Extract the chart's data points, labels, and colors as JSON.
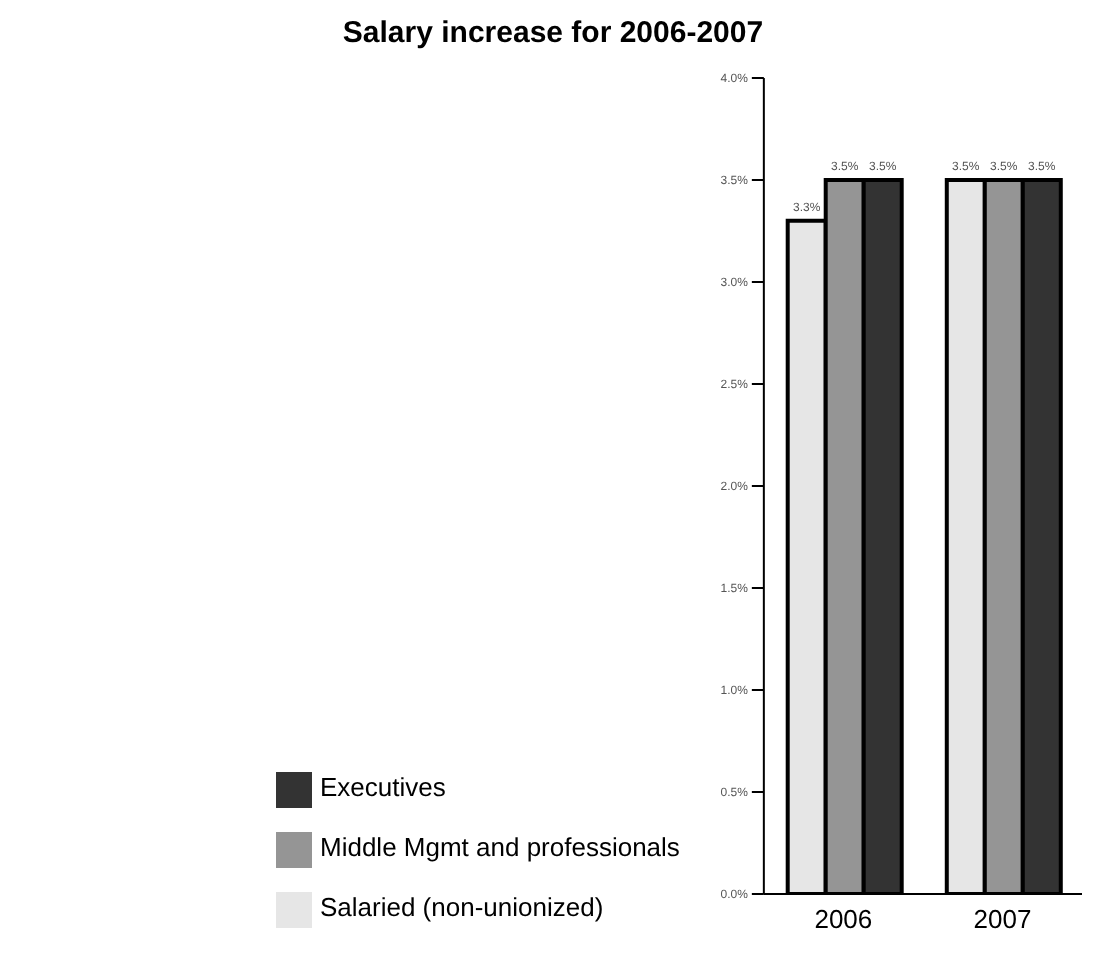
{
  "chart_data": {
    "type": "bar",
    "title": "Salary increase for 2006-2007",
    "categories": [
      "2006",
      "2007"
    ],
    "series": [
      {
        "name": "Salaried (non-unionized)",
        "color": "#e6e6e6",
        "values": [
          3.3,
          3.5
        ],
        "value_labels": [
          "3.3%",
          "3.5%"
        ]
      },
      {
        "name": "Middle Mgmt and professionals",
        "color": "#959595",
        "values": [
          3.5,
          3.5
        ],
        "value_labels": [
          "3.5%",
          "3.5%"
        ]
      },
      {
        "name": "Executives",
        "color": "#333333",
        "values": [
          3.5,
          3.5
        ],
        "value_labels": [
          "3.5%",
          "3.5%"
        ]
      }
    ],
    "ylim": [
      0,
      4
    ],
    "yticks": [
      {
        "value": 0,
        "label": "0.0%"
      },
      {
        "value": 0.5,
        "label": "0.5%"
      },
      {
        "value": 1,
        "label": "1.0%"
      },
      {
        "value": 1.5,
        "label": "1.5%"
      },
      {
        "value": 2,
        "label": "2.0%"
      },
      {
        "value": 2.5,
        "label": "2.5%"
      },
      {
        "value": 3,
        "label": "3.0%"
      },
      {
        "value": 3.5,
        "label": "3.5%"
      },
      {
        "value": 4,
        "label": "4.0%"
      }
    ],
    "grid": false,
    "legend": "bottom"
  }
}
